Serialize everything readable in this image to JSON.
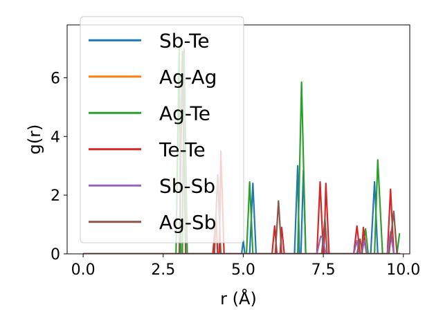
{
  "chart_data": {
    "type": "line",
    "xlabel": "r (Å)",
    "ylabel": "g(r)",
    "xlim": [
      -0.5,
      10.2
    ],
    "ylim": [
      0,
      7.8
    ],
    "xticks": [
      0.0,
      2.5,
      5.0,
      7.5,
      10.0
    ],
    "xtick_labels": [
      "0.0",
      "2.5",
      "5.0",
      "7.5",
      "10.0"
    ],
    "yticks": [
      0,
      2,
      4,
      6
    ],
    "ytick_labels": [
      "0",
      "2",
      "4",
      "6"
    ],
    "grid": false,
    "legend_position": "upper-left",
    "series": [
      {
        "name": "Sb-Te",
        "color": "#1f77b4",
        "points": [
          [
            0,
            0
          ],
          [
            4.95,
            0
          ],
          [
            5.0,
            0.45
          ],
          [
            5.05,
            0
          ],
          [
            5.2,
            0
          ],
          [
            5.3,
            2.4
          ],
          [
            5.4,
            0
          ],
          [
            6.6,
            0
          ],
          [
            6.7,
            3.0
          ],
          [
            6.75,
            0
          ],
          [
            6.8,
            0
          ],
          [
            6.88,
            2.85
          ],
          [
            6.95,
            0
          ],
          [
            8.98,
            0
          ],
          [
            9.1,
            2.45
          ],
          [
            9.2,
            0
          ],
          [
            9.9,
            0
          ]
        ]
      },
      {
        "name": "Ag-Ag",
        "color": "#ff7f0e",
        "points": [
          [
            0,
            0
          ],
          [
            9.9,
            0
          ]
        ]
      },
      {
        "name": "Ag-Te",
        "color": "#2ca02c",
        "points": [
          [
            0,
            0
          ],
          [
            2.9,
            0
          ],
          [
            3.0,
            7.0
          ],
          [
            3.05,
            0
          ],
          [
            3.1,
            0
          ],
          [
            3.15,
            7.0
          ],
          [
            3.25,
            0
          ],
          [
            5.1,
            0
          ],
          [
            5.2,
            2.45
          ],
          [
            5.3,
            0
          ],
          [
            6.7,
            0
          ],
          [
            6.82,
            5.85
          ],
          [
            6.95,
            0
          ],
          [
            8.7,
            0
          ],
          [
            8.82,
            0.85
          ],
          [
            8.9,
            0
          ],
          [
            9.1,
            0
          ],
          [
            9.2,
            3.2
          ],
          [
            9.35,
            0
          ],
          [
            9.8,
            0
          ],
          [
            9.88,
            0.7
          ]
        ]
      },
      {
        "name": "Te-Te",
        "color": "#d62728",
        "points": [
          [
            0,
            0
          ],
          [
            4.05,
            0
          ],
          [
            4.15,
            1.3
          ],
          [
            4.2,
            0
          ],
          [
            4.25,
            0
          ],
          [
            4.3,
            3.5
          ],
          [
            4.4,
            0
          ],
          [
            5.9,
            0
          ],
          [
            5.98,
            0.95
          ],
          [
            6.05,
            0
          ],
          [
            6.15,
            0
          ],
          [
            6.2,
            0.9
          ],
          [
            6.28,
            0
          ],
          [
            7.3,
            0
          ],
          [
            7.4,
            2.45
          ],
          [
            7.5,
            0
          ],
          [
            7.52,
            0
          ],
          [
            7.58,
            2.4
          ],
          [
            7.68,
            0
          ],
          [
            8.45,
            0
          ],
          [
            8.55,
            0.95
          ],
          [
            8.65,
            0
          ],
          [
            8.7,
            0
          ],
          [
            8.75,
            0.9
          ],
          [
            8.85,
            0
          ],
          [
            9.5,
            0
          ],
          [
            9.6,
            2.2
          ],
          [
            9.7,
            0
          ],
          [
            9.9,
            0
          ]
        ]
      },
      {
        "name": "Sb-Sb",
        "color": "#9467bd",
        "points": [
          [
            0,
            0
          ],
          [
            7.3,
            0
          ],
          [
            7.42,
            0.6
          ],
          [
            7.48,
            0.55
          ],
          [
            7.58,
            0
          ],
          [
            8.45,
            0
          ],
          [
            8.55,
            0.45
          ],
          [
            8.62,
            0
          ],
          [
            8.7,
            0
          ],
          [
            8.78,
            0.45
          ],
          [
            8.85,
            0
          ],
          [
            9.5,
            0
          ],
          [
            9.6,
            0.75
          ],
          [
            9.7,
            0
          ],
          [
            9.9,
            0
          ]
        ]
      },
      {
        "name": "Ag-Sb",
        "color": "#8c564b",
        "points": [
          [
            0,
            0
          ],
          [
            3.0,
            0
          ],
          [
            3.1,
            6.9
          ],
          [
            3.2,
            0
          ],
          [
            4.1,
            0
          ],
          [
            4.2,
            2.7
          ],
          [
            4.3,
            0
          ],
          [
            6.0,
            0
          ],
          [
            6.1,
            1.8
          ],
          [
            6.2,
            0
          ],
          [
            7.45,
            0
          ],
          [
            7.55,
            1.2
          ],
          [
            7.62,
            0
          ],
          [
            8.55,
            0
          ],
          [
            8.65,
            0.5
          ],
          [
            8.72,
            0
          ],
          [
            9.55,
            0
          ],
          [
            9.7,
            1.45
          ],
          [
            9.8,
            0
          ],
          [
            9.9,
            0
          ]
        ]
      }
    ]
  }
}
